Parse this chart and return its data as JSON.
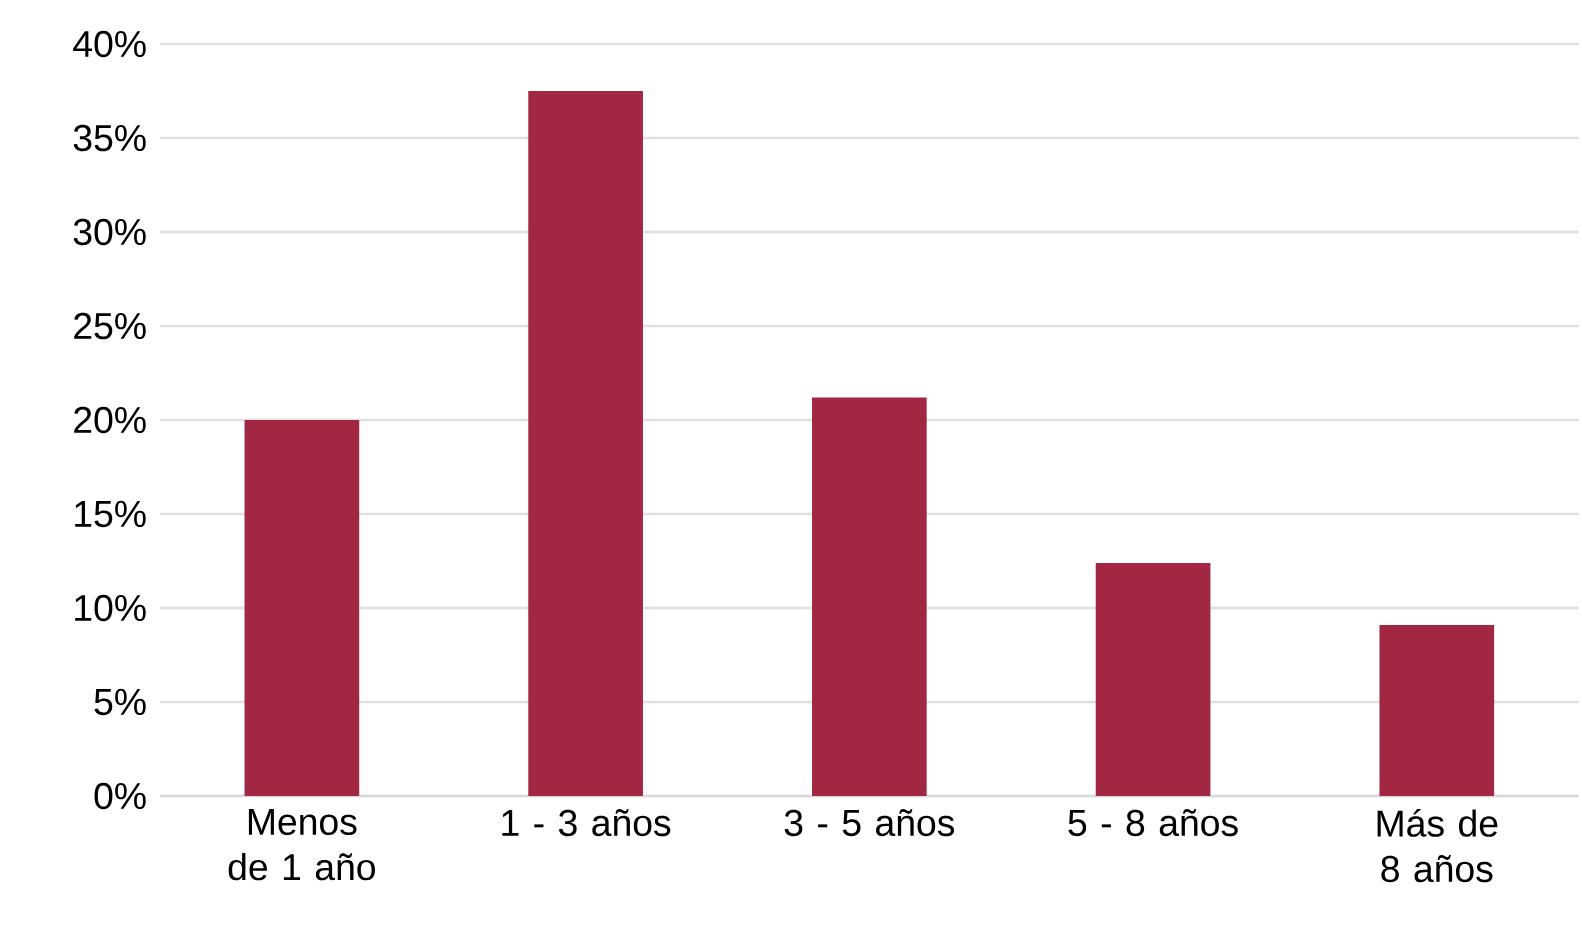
{
  "chart_data": {
    "type": "bar",
    "categories": [
      "Menos de 1 año",
      "1 - 3 años",
      "3 - 5 años",
      "5 - 8 años",
      "Más de 8 años"
    ],
    "values": [
      20,
      37.5,
      21.2,
      12.4,
      9.1
    ],
    "color": "#a12743",
    "ylim": [
      0,
      40
    ],
    "yticks": [
      {
        "value": 0,
        "label": "0%"
      },
      {
        "value": 5,
        "label": "5%"
      },
      {
        "value": 10,
        "label": "10%"
      },
      {
        "value": 15,
        "label": "15%"
      },
      {
        "value": 20,
        "label": "20%"
      },
      {
        "value": 25,
        "label": "25%"
      },
      {
        "value": 30,
        "label": "30%"
      },
      {
        "value": 35,
        "label": "35%"
      },
      {
        "value": 40,
        "label": "40%"
      }
    ],
    "grid": "y"
  }
}
